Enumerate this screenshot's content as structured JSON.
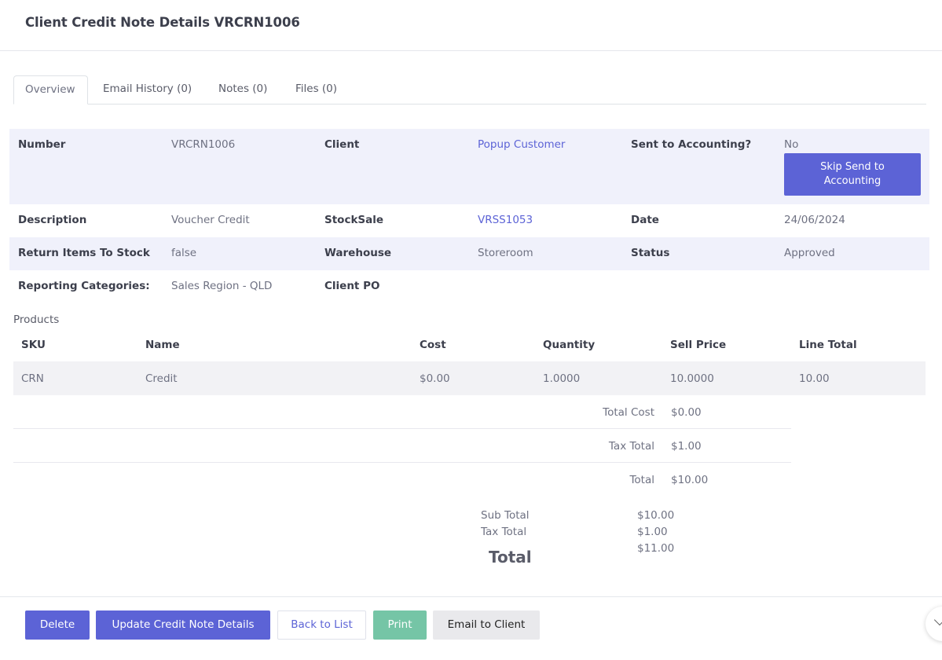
{
  "header": {
    "title": "Client Credit Note Details VRCRN1006"
  },
  "tabs": [
    "Overview",
    "Email History (0)",
    "Notes (0)",
    "Files (0)"
  ],
  "details": {
    "number_label": "Number",
    "number_value": "VRCRN1006",
    "client_label": "Client",
    "client_value": "Popup Customer",
    "sent_label": "Sent to Accounting?",
    "sent_value": "No",
    "skip_button": "Skip Send to Accounting",
    "description_label": "Description",
    "description_value": "Voucher Credit",
    "stocksale_label": "StockSale",
    "stocksale_value": "VRSS1053",
    "date_label": "Date",
    "date_value": "24/06/2024",
    "return_label": "Return Items To Stock",
    "return_value": "false",
    "warehouse_label": "Warehouse",
    "warehouse_value": "Storeroom",
    "status_label": "Status",
    "status_value": "Approved",
    "reporting_label": "Reporting Categories:",
    "reporting_value": "Sales Region - QLD",
    "clientpo_label": "Client PO"
  },
  "products": {
    "label": "Products",
    "columns": [
      "SKU",
      "Name",
      "Cost",
      "Quantity",
      "Sell Price",
      "Line Total"
    ],
    "rows": [
      [
        "CRN",
        "Credit",
        "$0.00",
        "1.0000",
        "10.0000",
        "10.00"
      ]
    ],
    "totals": [
      {
        "label": "Total Cost",
        "value": "$0.00"
      },
      {
        "label": "Tax Total",
        "value": "$1.00"
      },
      {
        "label": "Total",
        "value": "$10.00"
      }
    ]
  },
  "summary": {
    "sub_total_label": "Sub Total",
    "sub_total_value": "$10.00",
    "tax_total_label": "Tax Total",
    "tax_total_value": "$1.00",
    "total_label": "Total",
    "total_value": "$11.00"
  },
  "footer": {
    "delete": "Delete",
    "update": "Update Credit Note Details",
    "back": "Back to List",
    "print": "Print",
    "email": "Email to Client"
  },
  "colors": {
    "primary": "#5c63d6",
    "print": "#75c5a6",
    "shade": "#f0f1fb"
  },
  "icons": {
    "scroll_button": "chevron-down-icon"
  }
}
